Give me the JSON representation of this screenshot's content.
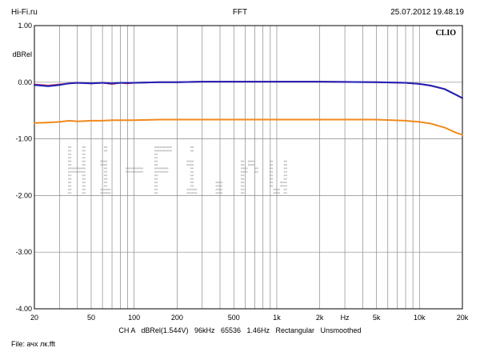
{
  "header": {
    "left": "Hi-Fi.ru",
    "center": "FFT",
    "right": "25.07.2012 19.48.19"
  },
  "footer": {
    "info": "CH A   dBRel(1.544V)   96kHz   65536   1.46Hz   Rectangular   Unsmoothed",
    "file": "File: ачх лк.fft"
  },
  "brand": "CLIO",
  "watermark": "Hi-Fi.ru",
  "colors": {
    "background": "#ffffff",
    "grid": "#8a8a8a",
    "series_blue": "#1e22b8",
    "series_red": "#c81e4a",
    "series_orange": "#f08a1c",
    "watermark": "#c8c8c8"
  },
  "chart_data": {
    "type": "line",
    "title": "FFT",
    "xlabel": "Hz",
    "ylabel": "dBRel",
    "x_scale": "log",
    "xlim": [
      20,
      20000
    ],
    "ylim": [
      -4.0,
      1.0
    ],
    "grid": true,
    "x_tick_labels": [
      {
        "value": 20,
        "label": "20"
      },
      {
        "value": 50,
        "label": "50"
      },
      {
        "value": 100,
        "label": "100"
      },
      {
        "value": 200,
        "label": "200"
      },
      {
        "value": 500,
        "label": "500"
      },
      {
        "value": 1000,
        "label": "1k"
      },
      {
        "value": 2000,
        "label": "2k"
      },
      {
        "value": 3000,
        "label": "Hz"
      },
      {
        "value": 5000,
        "label": "5k"
      },
      {
        "value": 10000,
        "label": "10k"
      },
      {
        "value": 20000,
        "label": "20k"
      }
    ],
    "y_tick_labels": [
      {
        "value": 1.0,
        "label": "1.00"
      },
      {
        "value": 0.0,
        "label": "0.00"
      },
      {
        "value": -1.0,
        "label": "-1.00"
      },
      {
        "value": -2.0,
        "label": "-2.00"
      },
      {
        "value": -3.0,
        "label": "-3.00"
      },
      {
        "value": -4.0,
        "label": "-4.00"
      }
    ],
    "series": [
      {
        "color": "#c81e4a",
        "x": [
          20,
          25,
          30,
          35,
          40,
          50,
          60,
          70,
          80,
          90,
          100,
          150,
          200,
          300,
          500,
          1000,
          2000,
          5000,
          8000,
          10000,
          12000,
          15000,
          18000,
          20000
        ],
        "y": [
          -0.04,
          -0.06,
          -0.04,
          -0.02,
          -0.01,
          -0.02,
          -0.01,
          -0.03,
          -0.01,
          -0.02,
          -0.01,
          0.0,
          0.0,
          0.01,
          0.01,
          0.01,
          0.01,
          0.0,
          -0.01,
          -0.03,
          -0.06,
          -0.12,
          -0.22,
          -0.28
        ]
      },
      {
        "color": "#1e22b8",
        "x": [
          20,
          25,
          30,
          35,
          40,
          50,
          60,
          70,
          80,
          90,
          100,
          150,
          200,
          300,
          500,
          1000,
          2000,
          5000,
          8000,
          10000,
          12000,
          15000,
          18000,
          20000
        ],
        "y": [
          -0.05,
          -0.07,
          -0.05,
          -0.02,
          -0.01,
          -0.02,
          -0.01,
          -0.02,
          -0.01,
          -0.01,
          -0.01,
          0.0,
          0.0,
          0.01,
          0.01,
          0.01,
          0.01,
          0.0,
          -0.01,
          -0.03,
          -0.06,
          -0.12,
          -0.22,
          -0.28
        ]
      },
      {
        "color": "#f08a1c",
        "x": [
          20,
          25,
          30,
          35,
          40,
          50,
          60,
          70,
          80,
          100,
          150,
          200,
          300,
          500,
          1000,
          2000,
          5000,
          8000,
          10000,
          12000,
          15000,
          18000,
          20000
        ],
        "y": [
          -0.72,
          -0.71,
          -0.7,
          -0.68,
          -0.69,
          -0.68,
          -0.68,
          -0.67,
          -0.67,
          -0.67,
          -0.66,
          -0.66,
          -0.66,
          -0.66,
          -0.66,
          -0.66,
          -0.66,
          -0.68,
          -0.7,
          -0.73,
          -0.8,
          -0.89,
          -0.93
        ]
      }
    ]
  }
}
